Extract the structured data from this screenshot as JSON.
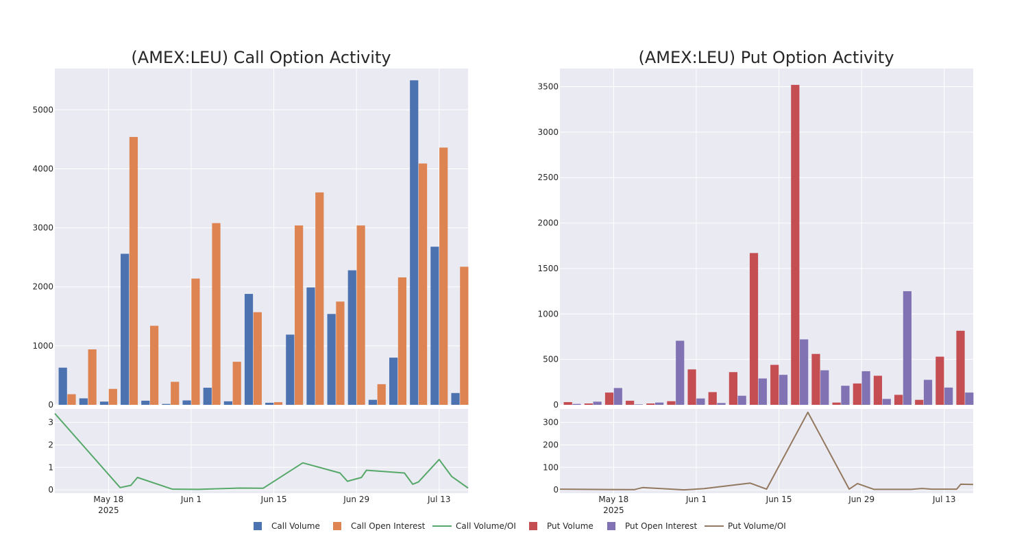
{
  "chart_data": [
    {
      "type": "bar",
      "title": "(AMEX:LEU) Call Option Activity",
      "ylim": [
        0,
        5700
      ],
      "yticks": [
        0,
        1000,
        2000,
        3000,
        4000,
        5000
      ],
      "series": [
        {
          "name": "Call Volume",
          "color": "#4c72b0",
          "values": [
            630,
            110,
            55,
            2560,
            70,
            15,
            75,
            290,
            60,
            1880,
            35,
            1190,
            1990,
            1540,
            2280,
            85,
            800,
            5500,
            2680,
            200
          ]
        },
        {
          "name": "Call Open Interest",
          "color": "#dd8452",
          "values": [
            180,
            940,
            270,
            4540,
            1340,
            390,
            2140,
            3080,
            730,
            1570,
            45,
            3040,
            3600,
            1750,
            3040,
            350,
            2160,
            4090,
            4360,
            2340
          ]
        }
      ],
      "ratio": {
        "name": "Call Volume/OI",
        "color": "#55a868",
        "ylim": [
          -0.15,
          3.6
        ],
        "yticks": [
          0,
          1,
          2,
          3
        ],
        "x": [
          0,
          7.9,
          9.2,
          10,
          14.2,
          17.4,
          22.4,
          25.2,
          30,
          34.5,
          35.4,
          37.1,
          37.7,
          42.3,
          43.3,
          44,
          46.5,
          48,
          50
        ],
        "y": [
          3.4,
          0.1,
          0.2,
          0.55,
          0.03,
          0.02,
          0.08,
          0.07,
          1.2,
          0.75,
          0.38,
          0.55,
          0.87,
          0.75,
          0.25,
          0.35,
          1.35,
          0.6,
          0.08
        ]
      },
      "xaxis": {
        "range": [
          -1,
          49
        ],
        "ticks": [
          {
            "pos": 5.5,
            "label": "May 18"
          },
          {
            "pos": 15.5,
            "label": "Jun 1"
          },
          {
            "pos": 25.5,
            "label": "Jun 15"
          },
          {
            "pos": 35.5,
            "label": "Jun 29"
          },
          {
            "pos": 45.5,
            "label": "Jul 13"
          }
        ],
        "year_label": "2025"
      }
    },
    {
      "type": "bar",
      "title": "(AMEX:LEU) Put Option Activity",
      "ylim": [
        0,
        3700
      ],
      "yticks": [
        0,
        500,
        1000,
        1500,
        2000,
        2500,
        3000,
        3500
      ],
      "series": [
        {
          "name": "Put Volume",
          "color": "#c44e52",
          "values": [
            30,
            15,
            135,
            45,
            15,
            40,
            390,
            140,
            360,
            1670,
            440,
            3520,
            560,
            25,
            235,
            320,
            110,
            55,
            530,
            815
          ]
        },
        {
          "name": "Put Open Interest",
          "color": "#8172b3",
          "values": [
            10,
            35,
            185,
            5,
            25,
            705,
            70,
            20,
            100,
            290,
            330,
            720,
            380,
            210,
            370,
            65,
            1250,
            275,
            190,
            135
          ]
        }
      ],
      "ratio": {
        "name": "Put Volume/OI",
        "color": "#937860",
        "ylim": [
          -15,
          360
        ],
        "yticks": [
          0,
          100,
          200,
          300
        ],
        "x": [
          0,
          9,
          10,
          15,
          17.4,
          23,
          25,
          30,
          35,
          36,
          38,
          42.5,
          43.8,
          45,
          48,
          48.5,
          50
        ],
        "y": [
          3,
          1,
          10,
          0,
          5,
          30,
          3,
          345,
          3,
          28,
          2,
          2,
          6,
          3,
          3,
          25,
          24
        ]
      },
      "xaxis": {
        "range": [
          -1,
          49
        ],
        "ticks": [
          {
            "pos": 5.5,
            "label": "May 18"
          },
          {
            "pos": 15.5,
            "label": "Jun 1"
          },
          {
            "pos": 25.5,
            "label": "Jun 15"
          },
          {
            "pos": 35.5,
            "label": "Jun 29"
          },
          {
            "pos": 45.5,
            "label": "Jul 13"
          }
        ],
        "year_label": "2025"
      }
    }
  ],
  "legend": [
    {
      "label": "Call Volume",
      "kind": "square",
      "color": "#4c72b0"
    },
    {
      "label": "Call Open Interest",
      "kind": "square",
      "color": "#dd8452"
    },
    {
      "label": "Call Volume/OI",
      "kind": "line",
      "color": "#55a868"
    },
    {
      "label": "Put Volume",
      "kind": "square",
      "color": "#c44e52"
    },
    {
      "label": "Put Open Interest",
      "kind": "square",
      "color": "#8172b3"
    },
    {
      "label": "Put Volume/OI",
      "kind": "line",
      "color": "#937860"
    }
  ]
}
